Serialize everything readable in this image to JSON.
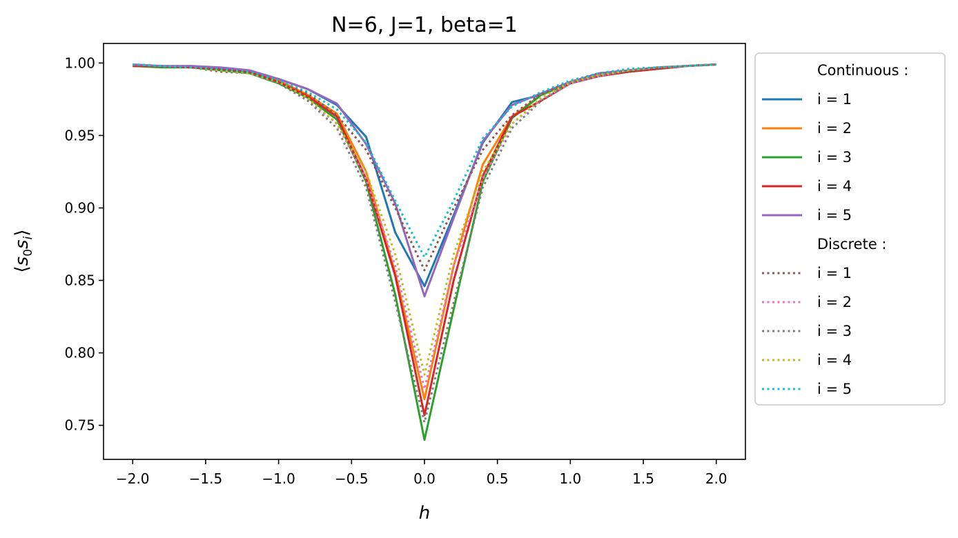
{
  "chart_data": {
    "type": "line",
    "title": "N=6, J=1, beta=1",
    "xlabel": "h",
    "ylabel_parts": {
      "open": "⟨",
      "s": "s",
      "sub0": "0",
      "s2": "s",
      "subi": "i",
      "close": "⟩"
    },
    "xlim": [
      -2.2,
      2.2
    ],
    "ylim": [
      0.7265,
      1.0135
    ],
    "xticks": [
      -2.0,
      -1.5,
      -1.0,
      -0.5,
      0.0,
      0.5,
      1.0,
      1.5,
      2.0
    ],
    "xtick_labels": [
      "−2.0",
      "−1.5",
      "−1.0",
      "−0.5",
      "0.0",
      "0.5",
      "1.0",
      "1.5",
      "2.0"
    ],
    "yticks": [
      0.75,
      0.8,
      0.85,
      0.9,
      0.95,
      1.0
    ],
    "ytick_labels": [
      "0.75",
      "0.80",
      "0.85",
      "0.90",
      "0.95",
      "1.00"
    ],
    "x": [
      -2.0,
      -1.8,
      -1.6,
      -1.4,
      -1.2,
      -1.0,
      -0.8,
      -0.6,
      -0.4,
      -0.2,
      0.0,
      0.2,
      0.4,
      0.6,
      0.8,
      1.0,
      1.2,
      1.4,
      1.6,
      1.8,
      2.0
    ],
    "legend_groups": [
      {
        "header": "Continuous :",
        "dash": "solid",
        "series": [
          {
            "name": "i = 1",
            "color": "#1f77b4",
            "values": [
              0.998,
              0.998,
              0.997,
              0.996,
              0.994,
              0.989,
              0.982,
              0.971,
              0.949,
              0.883,
              0.846,
              0.895,
              0.945,
              0.973,
              0.978,
              0.987,
              0.992,
              0.994,
              0.996,
              0.998,
              0.999
            ]
          },
          {
            "name": "i = 2",
            "color": "#ff7f0e",
            "values": [
              0.998,
              0.998,
              0.997,
              0.996,
              0.994,
              0.988,
              0.978,
              0.965,
              0.925,
              0.855,
              0.768,
              0.86,
              0.93,
              0.963,
              0.978,
              0.986,
              0.992,
              0.994,
              0.996,
              0.998,
              0.999
            ]
          },
          {
            "name": "i = 3",
            "color": "#2ca02c",
            "values": [
              0.998,
              0.997,
              0.997,
              0.995,
              0.993,
              0.986,
              0.976,
              0.961,
              0.918,
              0.84,
              0.74,
              0.83,
              0.918,
              0.962,
              0.978,
              0.986,
              0.991,
              0.994,
              0.996,
              0.998,
              0.999
            ]
          },
          {
            "name": "i = 4",
            "color": "#d62728",
            "values": [
              0.998,
              0.998,
              0.997,
              0.996,
              0.994,
              0.987,
              0.977,
              0.963,
              0.92,
              0.853,
              0.757,
              0.85,
              0.922,
              0.963,
              0.974,
              0.986,
              0.991,
              0.994,
              0.996,
              0.998,
              0.999
            ]
          },
          {
            "name": "i = 5",
            "color": "#9467bd",
            "values": [
              0.999,
              0.998,
              0.998,
              0.997,
              0.995,
              0.989,
              0.982,
              0.972,
              0.944,
              0.903,
              0.839,
              0.893,
              0.946,
              0.971,
              0.979,
              0.987,
              0.993,
              0.995,
              0.997,
              0.998,
              0.999
            ]
          }
        ]
      },
      {
        "header": "Discrete :",
        "dash": "dotted",
        "series": [
          {
            "name": "i = 1",
            "color": "#8c564b",
            "values": [
              0.999,
              0.998,
              0.997,
              0.994,
              0.993,
              0.987,
              0.979,
              0.964,
              0.94,
              0.9,
              0.857,
              0.9,
              0.94,
              0.964,
              0.979,
              0.987,
              0.993,
              0.994,
              0.997,
              0.998,
              0.999
            ]
          },
          {
            "name": "i = 2",
            "color": "#e377c2",
            "values": [
              0.999,
              0.998,
              0.997,
              0.995,
              0.993,
              0.986,
              0.975,
              0.958,
              0.92,
              0.86,
              0.775,
              0.86,
              0.92,
              0.958,
              0.975,
              0.986,
              0.991,
              0.995,
              0.997,
              0.998,
              0.999
            ]
          },
          {
            "name": "i = 3",
            "color": "#7f7f7f",
            "values": [
              0.999,
              0.998,
              0.997,
              0.995,
              0.993,
              0.986,
              0.974,
              0.955,
              0.914,
              0.835,
              0.752,
              0.835,
              0.914,
              0.955,
              0.974,
              0.986,
              0.991,
              0.995,
              0.997,
              0.998,
              0.999
            ]
          },
          {
            "name": "i = 4",
            "color": "#bcbd22",
            "values": [
              0.999,
              0.998,
              0.997,
              0.995,
              0.993,
              0.987,
              0.976,
              0.958,
              0.925,
              0.868,
              0.785,
              0.868,
              0.925,
              0.958,
              0.976,
              0.987,
              0.992,
              0.995,
              0.997,
              0.998,
              0.999
            ]
          },
          {
            "name": "i = 5",
            "color": "#17becf",
            "values": [
              0.999,
              0.998,
              0.997,
              0.996,
              0.994,
              0.988,
              0.98,
              0.968,
              0.945,
              0.905,
              0.866,
              0.905,
              0.948,
              0.97,
              0.98,
              0.988,
              0.993,
              0.996,
              0.997,
              0.998,
              0.999
            ]
          }
        ]
      }
    ]
  }
}
